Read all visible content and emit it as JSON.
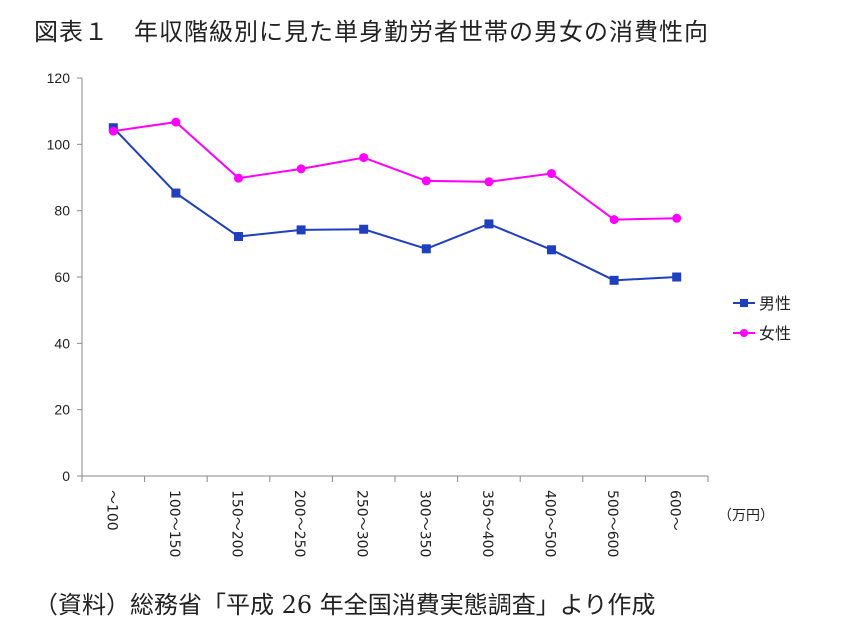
{
  "title": "図表１　年収階級別に見た単身勤労者世帯の男女の消費性向",
  "source": "（資料）総務省「平成 26 年全国消費実態調査」より作成",
  "chart_data": {
    "type": "line",
    "categories": [
      "～100",
      "100～150",
      "150～200",
      "200～250",
      "250～300",
      "300～350",
      "350～400",
      "400～500",
      "500～600",
      "600～"
    ],
    "x_unit": "（万円）",
    "ylim": [
      0,
      120
    ],
    "yticks": [
      0,
      20,
      40,
      60,
      80,
      100,
      120
    ],
    "grid": false,
    "legend_position": "right",
    "series": [
      {
        "name": "男性",
        "color": "#1f3fbf",
        "marker": "square",
        "values": [
          105,
          85.3,
          72.2,
          74.2,
          74.4,
          68.5,
          76,
          68.2,
          59,
          60
        ]
      },
      {
        "name": "女性",
        "color": "#ff00ff",
        "marker": "circle",
        "values": [
          104,
          106.7,
          89.8,
          92.6,
          96,
          89,
          88.7,
          91.2,
          77.3,
          77.7
        ]
      }
    ]
  }
}
